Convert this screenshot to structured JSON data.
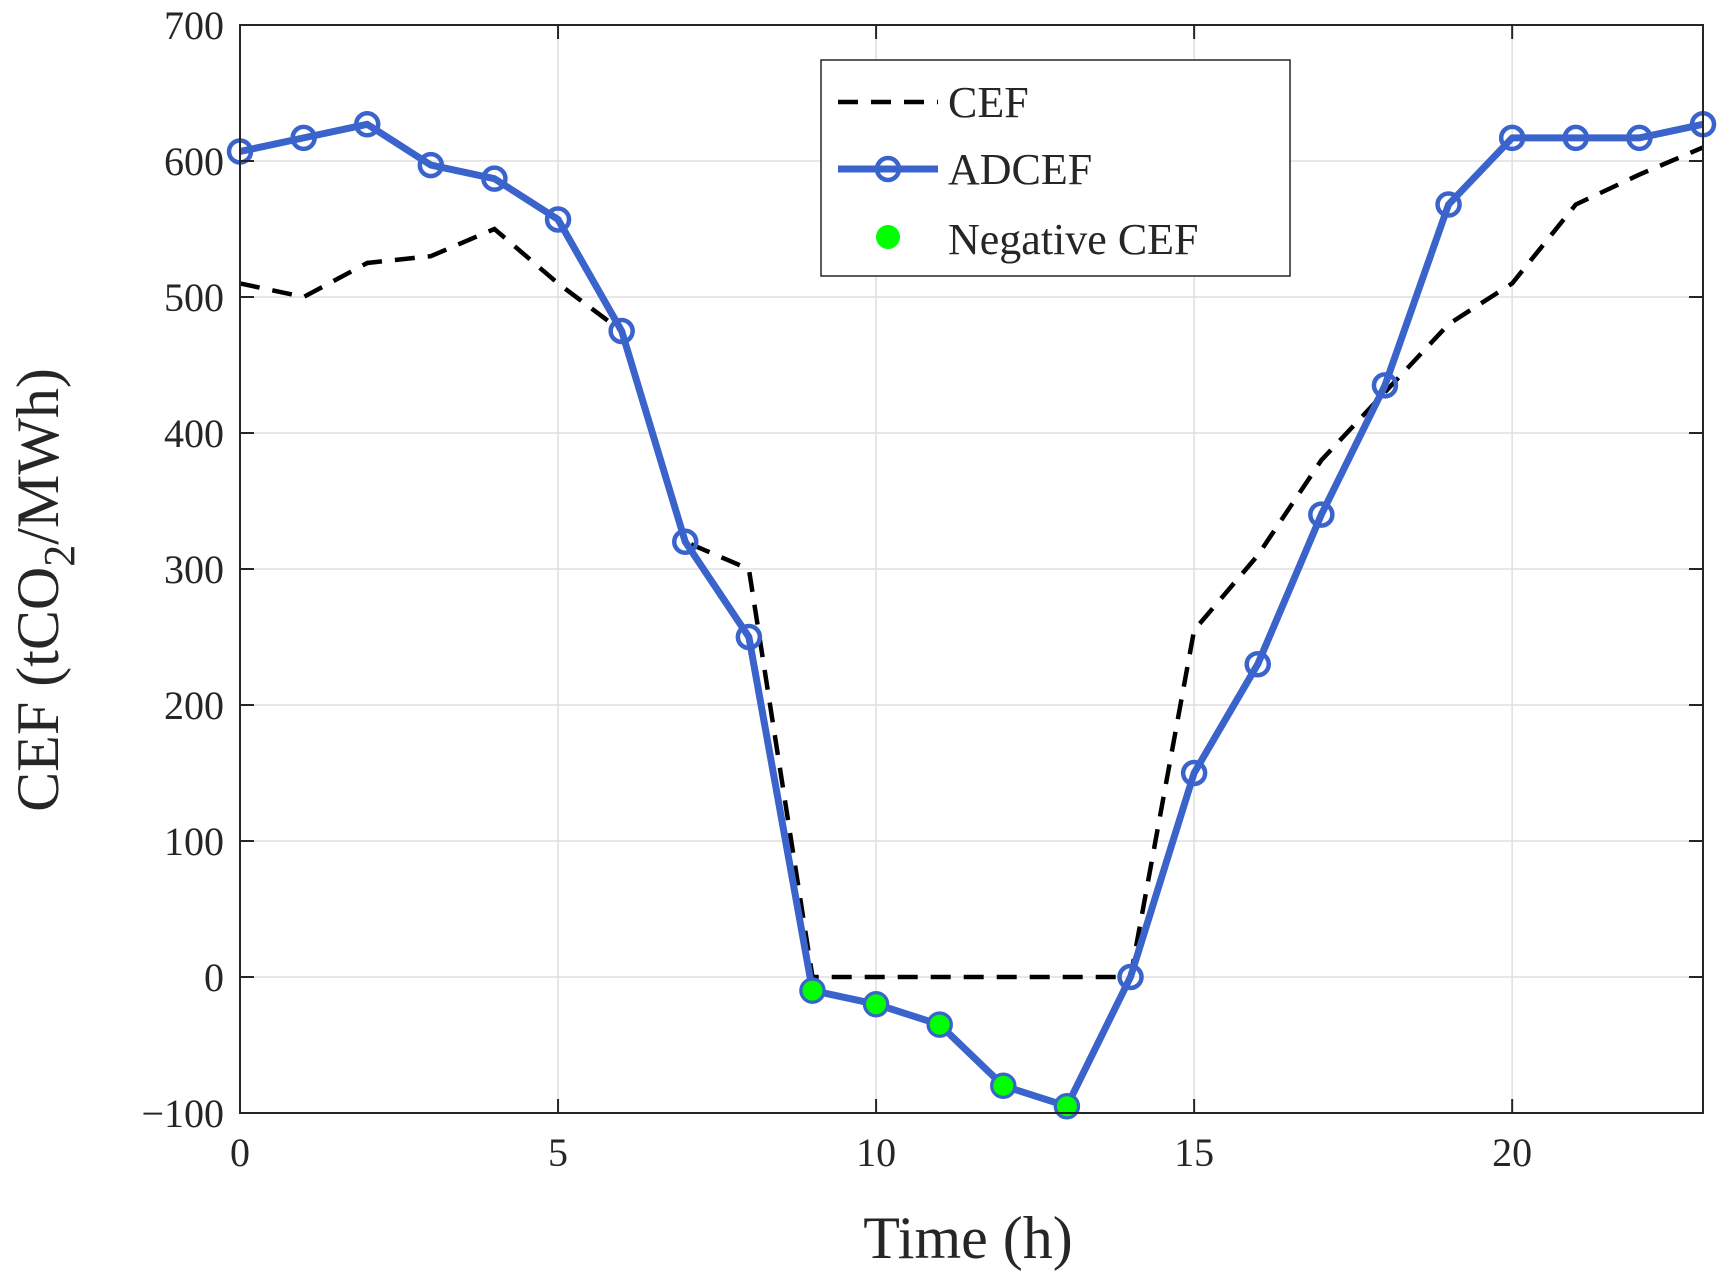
{
  "chart_data": {
    "type": "line",
    "title": "",
    "xlabel": "Time (h)",
    "ylabel": {
      "prefix": "CEF (tCO",
      "subscript": "2",
      "suffix": "/MWh)"
    },
    "xlim": [
      0,
      23
    ],
    "ylim": [
      -100,
      700
    ],
    "xticks": [
      0,
      5,
      10,
      15,
      20
    ],
    "xtick_labels": [
      "0",
      "5",
      "10",
      "15",
      "20"
    ],
    "yticks": [
      -100,
      0,
      100,
      200,
      300,
      400,
      500,
      600,
      700
    ],
    "ytick_labels": [
      "−100",
      "0",
      "100",
      "200",
      "300",
      "400",
      "500",
      "600",
      "700"
    ],
    "grid": true,
    "legend_position": "top-center",
    "x": [
      0,
      1,
      2,
      3,
      4,
      5,
      6,
      7,
      8,
      9,
      10,
      11,
      12,
      13,
      14,
      15,
      16,
      17,
      18,
      19,
      20,
      21,
      22,
      23
    ],
    "series": [
      {
        "name": "CEF",
        "style": "dashed",
        "color": "#000000",
        "values": [
          510,
          500,
          525,
          530,
          550,
          510,
          475,
          320,
          300,
          0,
          0,
          0,
          0,
          0,
          0,
          255,
          310,
          380,
          430,
          480,
          510,
          568,
          590,
          610
        ]
      },
      {
        "name": "ADCEF",
        "style": "solid-circle-markers",
        "color": "#3a63cc",
        "values": [
          607,
          617,
          627,
          597,
          587,
          557,
          475,
          320,
          250,
          -10,
          -20,
          -35,
          -80,
          -95,
          0,
          150,
          230,
          340,
          435,
          568,
          617,
          617,
          617,
          627
        ]
      },
      {
        "name": "Negative CEF",
        "style": "filled-markers",
        "color": "#00ff00",
        "x": [
          9,
          10,
          11,
          12,
          13
        ],
        "values": [
          -10,
          -20,
          -35,
          -80,
          -95
        ]
      }
    ]
  }
}
